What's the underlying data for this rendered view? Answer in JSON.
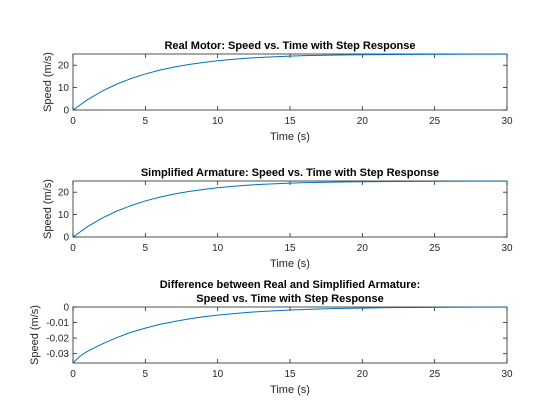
{
  "figure": {
    "background": "#ffffff"
  },
  "chart_data": [
    {
      "type": "line",
      "title": [
        "Real Motor: Speed vs. Time with Step Response"
      ],
      "xlabel": "Time (s)",
      "ylabel": "Speed (m/s)",
      "xlim": [
        0,
        30
      ],
      "ylim": [
        0,
        25
      ],
      "xticks": [
        0,
        5,
        10,
        15,
        20,
        25,
        30
      ],
      "xtick_labels": [
        "0",
        "5",
        "10",
        "15",
        "20",
        "25",
        "30"
      ],
      "yticks": [
        0,
        10,
        20
      ],
      "ytick_labels": [
        "0",
        "10",
        "20"
      ],
      "grid": false,
      "series": [
        {
          "color": "#0072bd",
          "x": [
            0,
            1,
            2,
            3,
            4,
            5,
            6,
            7,
            8,
            9,
            10,
            11,
            12,
            13,
            14,
            15,
            16,
            17,
            18,
            19,
            20,
            22,
            24,
            26,
            28,
            30
          ],
          "y": [
            0,
            4.6,
            8.4,
            11.5,
            14.0,
            16.1,
            17.8,
            19.2,
            20.3,
            21.2,
            22.0,
            22.6,
            23.1,
            23.5,
            23.8,
            24.05,
            24.25,
            24.4,
            24.5,
            24.6,
            24.68,
            24.78,
            24.85,
            24.9,
            24.93,
            24.95
          ]
        }
      ]
    },
    {
      "type": "line",
      "title": [
        "Simplified Armature: Speed vs. Time with Step Response"
      ],
      "xlabel": "Time (s)",
      "ylabel": "Speed (m/s)",
      "xlim": [
        0,
        30
      ],
      "ylim": [
        0,
        25
      ],
      "xticks": [
        0,
        5,
        10,
        15,
        20,
        25,
        30
      ],
      "xtick_labels": [
        "0",
        "5",
        "10",
        "15",
        "20",
        "25",
        "30"
      ],
      "yticks": [
        0,
        10,
        20
      ],
      "ytick_labels": [
        "0",
        "10",
        "20"
      ],
      "grid": false,
      "series": [
        {
          "color": "#0072bd",
          "x": [
            0,
            1,
            2,
            3,
            4,
            5,
            6,
            7,
            8,
            9,
            10,
            11,
            12,
            13,
            14,
            15,
            16,
            17,
            18,
            19,
            20,
            22,
            24,
            26,
            28,
            30
          ],
          "y": [
            0,
            4.6,
            8.4,
            11.5,
            14.0,
            16.1,
            17.8,
            19.2,
            20.3,
            21.2,
            22.0,
            22.6,
            23.1,
            23.5,
            23.8,
            24.05,
            24.25,
            24.4,
            24.5,
            24.6,
            24.68,
            24.78,
            24.85,
            24.9,
            24.93,
            24.95
          ]
        }
      ]
    },
    {
      "type": "line",
      "title": [
        "Difference between Real and Simplified Armature:",
        "Speed vs. Time with Step Response"
      ],
      "xlabel": "Time (s)",
      "ylabel": "Speed (m/s)",
      "xlim": [
        0,
        30
      ],
      "ylim": [
        -0.036,
        0
      ],
      "xticks": [
        0,
        5,
        10,
        15,
        20,
        25,
        30
      ],
      "xtick_labels": [
        "0",
        "5",
        "10",
        "15",
        "20",
        "25",
        "30"
      ],
      "yticks": [
        0,
        -0.01,
        -0.02,
        -0.03
      ],
      "ytick_labels": [
        "0",
        "-0.01",
        "-0.02",
        "-0.03"
      ],
      "grid": false,
      "series": [
        {
          "color": "#0072bd",
          "x": [
            0,
            0.5,
            1,
            2,
            3,
            4,
            5,
            6,
            7,
            8,
            9,
            10,
            11,
            12,
            13,
            14,
            15,
            16,
            18,
            20,
            22,
            24,
            26,
            28,
            30
          ],
          "y": [
            -0.036,
            -0.0315,
            -0.0285,
            -0.0238,
            -0.0198,
            -0.0163,
            -0.0136,
            -0.0112,
            -0.0093,
            -0.0077,
            -0.0063,
            -0.0052,
            -0.0043,
            -0.0035,
            -0.0029,
            -0.0024,
            -0.0019,
            -0.0016,
            -0.001,
            -0.0007,
            -0.0004,
            -0.0003,
            -0.0002,
            -0.0001,
            -0.0001
          ]
        }
      ]
    }
  ]
}
